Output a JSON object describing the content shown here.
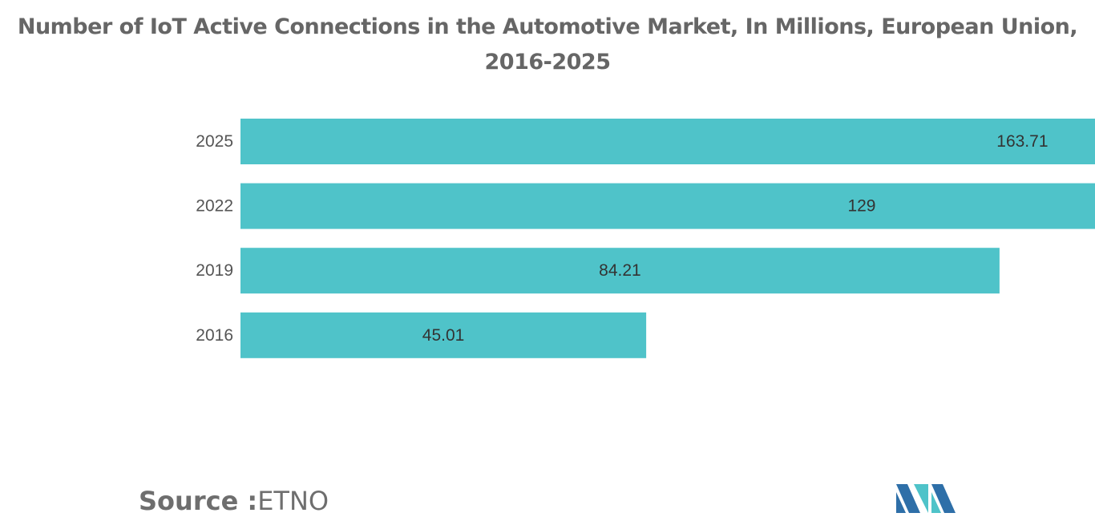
{
  "chart_data": {
    "type": "bar",
    "orientation": "horizontal",
    "title": "Number of IoT Active Connections in the Automotive Market, In Millions, European Union, 2016-2025",
    "categories": [
      "2025",
      "2022",
      "2019",
      "2016"
    ],
    "values": [
      163.71,
      129,
      84.21,
      45.01
    ],
    "value_labels": [
      "163.71",
      "129",
      "84.21",
      "45.01"
    ],
    "xlim": [
      0,
      90
    ],
    "grid": false,
    "legend": "none",
    "bar_color": "#4fc3c9"
  },
  "source": {
    "label": "Source :",
    "value": "ETNO"
  },
  "logo": {
    "icon": "mordor-intelligence-logo",
    "colors": [
      "#2e6fa8",
      "#4fc3c9"
    ]
  }
}
